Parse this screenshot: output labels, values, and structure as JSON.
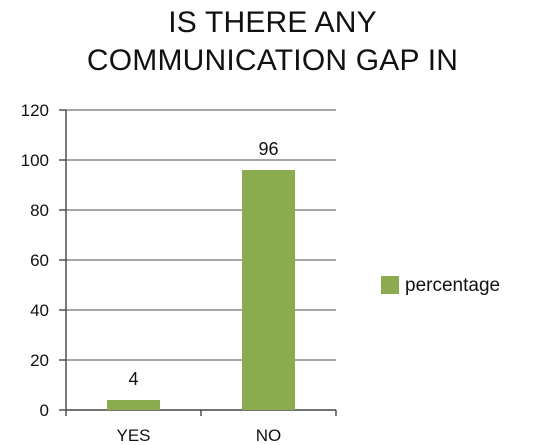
{
  "chart_data": {
    "type": "bar",
    "title_lines": [
      "IS THERE ANY",
      "COMMUNICATION GAP IN"
    ],
    "categories": [
      "YES",
      "NO"
    ],
    "series": [
      {
        "name": "percentage",
        "values": [
          4,
          96
        ]
      }
    ],
    "data_labels": [
      "4",
      "96"
    ],
    "ylim": [
      0,
      120
    ],
    "yticks": [
      0,
      20,
      40,
      60,
      80,
      100,
      120
    ],
    "ytick_labels": [
      "0",
      "20",
      "40",
      "60",
      "80",
      "100",
      "120"
    ],
    "grid": true,
    "legend_position": "right",
    "colors": {
      "bar": "#8aab4e",
      "grid": "#888888",
      "axis": "#444444"
    }
  }
}
